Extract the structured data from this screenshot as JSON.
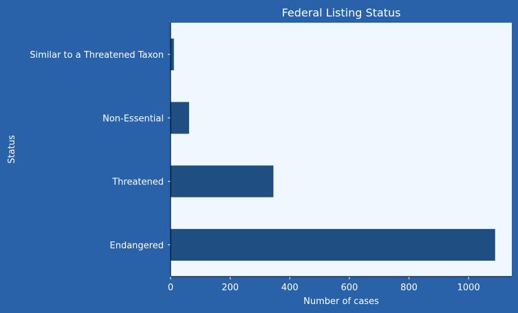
{
  "chart_data": {
    "type": "bar",
    "orientation": "horizontal",
    "title": "Federal Listing Status",
    "xlabel": "Number of cases",
    "ylabel": "Status",
    "categories": [
      "Endangered",
      "Threatened",
      "Non-Essential",
      "Similar to a Threatened Taxon"
    ],
    "values": [
      1089,
      345,
      62,
      11
    ],
    "xlim": [
      0,
      1145
    ],
    "xticks": [
      0,
      200,
      400,
      600,
      800,
      1000
    ],
    "grid": false,
    "legend": "none",
    "colors": {
      "background": "#2a62aa",
      "plot_area": "#eff7ff",
      "bar": "#1f4e82",
      "text": "#ffffff"
    }
  }
}
